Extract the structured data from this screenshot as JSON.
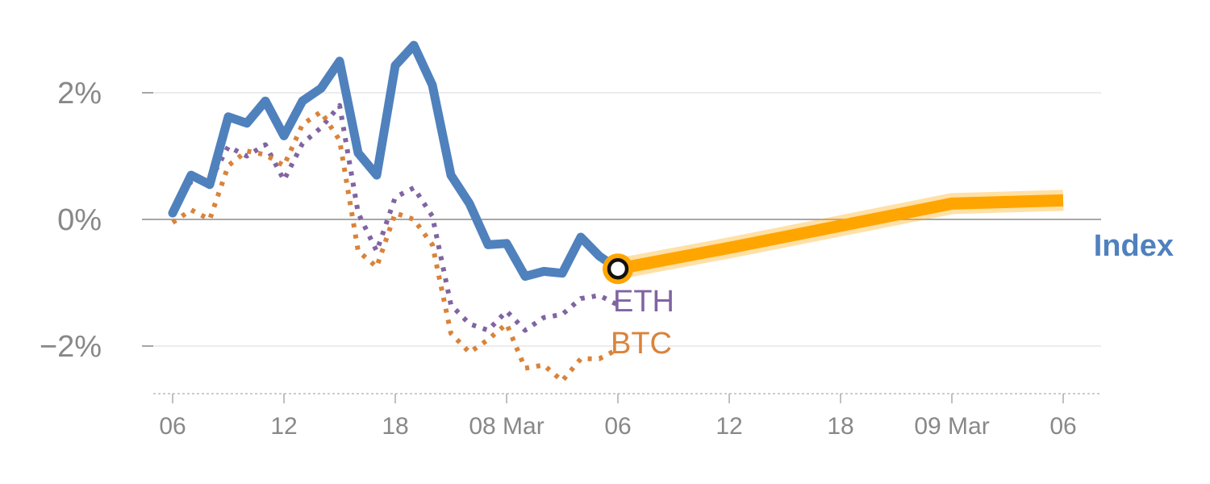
{
  "chart_data": {
    "type": "line",
    "y_ticks": [
      {
        "value": 2,
        "label": "2%"
      },
      {
        "value": 0,
        "label": "0%"
      },
      {
        "value": -2,
        "label": "−2%"
      }
    ],
    "x_ticks": [
      {
        "x": 0,
        "label": "06"
      },
      {
        "x": 6,
        "label": "12"
      },
      {
        "x": 12,
        "label": "18"
      },
      {
        "x": 18,
        "label": "08 Mar"
      },
      {
        "x": 24,
        "label": "06"
      },
      {
        "x": 30,
        "label": "12"
      },
      {
        "x": 36,
        "label": "18"
      },
      {
        "x": 42,
        "label": "09 Mar"
      },
      {
        "x": 48,
        "label": "06"
      }
    ],
    "xlim": [
      -1,
      49
    ],
    "ylim": [
      -2.75,
      3.2
    ],
    "series": [
      {
        "name": "Index",
        "color": "#4f81bd",
        "style": "solid",
        "x": [
          0,
          1,
          2,
          3,
          4,
          5,
          6,
          7,
          8,
          9,
          10,
          11,
          12,
          13,
          14,
          15,
          16,
          17,
          18,
          19,
          20,
          21,
          22,
          23,
          24
        ],
        "values": [
          0.1,
          0.7,
          0.55,
          1.62,
          1.52,
          1.87,
          1.32,
          1.87,
          2.07,
          2.5,
          1.05,
          0.7,
          2.43,
          2.75,
          2.12,
          0.7,
          0.25,
          -0.4,
          -0.38,
          -0.9,
          -0.82,
          -0.85,
          -0.28,
          -0.58,
          -0.78
        ]
      },
      {
        "name": "ETH",
        "color": "#8064a2",
        "style": "dotted",
        "x": [
          0,
          1,
          2,
          3,
          4,
          5,
          6,
          7,
          8,
          9,
          10,
          11,
          12,
          13,
          14,
          15,
          16,
          17,
          18,
          19,
          20,
          21,
          22,
          23,
          24
        ],
        "values": [
          0.1,
          0.6,
          0.6,
          1.15,
          1.0,
          1.18,
          0.62,
          1.2,
          1.45,
          1.8,
          0.1,
          -0.5,
          0.35,
          0.5,
          0.05,
          -1.35,
          -1.65,
          -1.75,
          -1.45,
          -1.75,
          -1.55,
          -1.5,
          -1.25,
          -1.2,
          -1.35
        ]
      },
      {
        "name": "BTC",
        "color": "#d9833b",
        "style": "dotted",
        "x": [
          0,
          1,
          2,
          3,
          4,
          5,
          6,
          7,
          8,
          9,
          10,
          11,
          12,
          13,
          14,
          15,
          16,
          17,
          18,
          19,
          20,
          21,
          22,
          23,
          24
        ],
        "values": [
          -0.05,
          0.15,
          0.0,
          0.85,
          1.08,
          1.02,
          0.85,
          1.5,
          1.7,
          1.25,
          -0.5,
          -0.75,
          0.1,
          0.0,
          -0.4,
          -1.8,
          -2.1,
          -1.9,
          -1.65,
          -2.35,
          -2.3,
          -2.55,
          -2.2,
          -2.2,
          -2.05
        ]
      },
      {
        "name": "Index forecast",
        "color": "#ffa500",
        "style": "band",
        "x": [
          24,
          30,
          36,
          42,
          48
        ],
        "values": [
          -0.78,
          -0.45,
          -0.1,
          0.25,
          0.3
        ]
      }
    ],
    "marker": {
      "x": 24,
      "value": -0.78
    },
    "labels": {
      "index": "Index",
      "eth": "ETH",
      "btc": "BTC"
    }
  }
}
